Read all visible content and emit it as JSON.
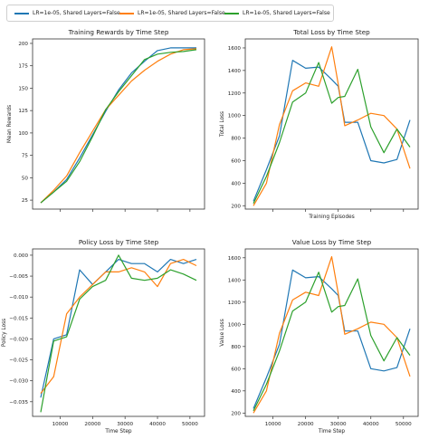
{
  "legend": [
    {
      "name": "LR=1e-05, Shared Layers=False",
      "color": "#1f77b4"
    },
    {
      "name": "LR=1e-05, Shared Layers=False",
      "color": "#ff7f0e"
    },
    {
      "name": "LR=1e-05, Shared Layers=False",
      "color": "#2ca02c"
    }
  ],
  "chart_data": [
    {
      "type": "line",
      "title": "Training Rewards by Time Step",
      "xlabel": "",
      "ylabel": "Mean Rewards",
      "xlim": [
        1500,
        54500
      ],
      "ylim": [
        15,
        205
      ],
      "yticks": [
        25,
        50,
        75,
        100,
        125,
        150,
        175,
        200
      ],
      "xticks": [
        10000,
        20000,
        30000,
        40000,
        50000
      ],
      "show_xticklabels": false,
      "x": [
        4000,
        8000,
        12000,
        16000,
        20000,
        24000,
        28000,
        32000,
        36000,
        40000,
        44000,
        48000,
        52000
      ],
      "series": [
        {
          "name": "LR=1e-05, Shared Layers=False",
          "color": "#1f77b4",
          "values": [
            22,
            34,
            48,
            72,
            98,
            124,
            148,
            167,
            180,
            192,
            195,
            195,
            195
          ]
        },
        {
          "name": "LR=1e-05, Shared Layers=False",
          "color": "#ff7f0e",
          "values": [
            22,
            36,
            52,
            78,
            102,
            126,
            142,
            158,
            170,
            180,
            188,
            193,
            194
          ]
        },
        {
          "name": "LR=1e-05, Shared Layers=False",
          "color": "#2ca02c",
          "values": [
            22,
            34,
            46,
            68,
            96,
            126,
            146,
            164,
            182,
            188,
            190,
            191,
            193
          ]
        }
      ]
    },
    {
      "type": "line",
      "title": "Total Loss by Time Step",
      "xlabel": "Training Episodes",
      "ylabel": "Total Loss",
      "xlim": [
        1500,
        54500
      ],
      "ylim": [
        170,
        1680
      ],
      "yticks": [
        200,
        400,
        600,
        800,
        1000,
        1200,
        1400,
        1600
      ],
      "xticks": [
        10000,
        20000,
        30000,
        40000,
        50000
      ],
      "show_xticklabels": false,
      "x": [
        4000,
        8000,
        12000,
        16000,
        20000,
        24000,
        28000,
        30000,
        32000,
        36000,
        40000,
        44000,
        48000,
        52000
      ],
      "series": [
        {
          "name": "LR=1e-05, Shared Layers=False",
          "color": "#1f77b4",
          "values": [
            240,
            520,
            820,
            1490,
            1420,
            1430,
            1320,
            1260,
            940,
            940,
            600,
            580,
            610,
            960
          ]
        },
        {
          "name": "LR=1e-05, Shared Layers=False",
          "color": "#ff7f0e",
          "values": [
            200,
            400,
            920,
            1220,
            1290,
            1260,
            1610,
            1280,
            910,
            960,
            1020,
            1000,
            880,
            530
          ]
        },
        {
          "name": "LR=1e-05, Shared Layers=False",
          "color": "#2ca02c",
          "values": [
            220,
            460,
            760,
            1120,
            1200,
            1470,
            1110,
            1160,
            1170,
            1410,
            900,
            670,
            880,
            720
          ]
        }
      ]
    },
    {
      "type": "line",
      "title": "Policy Loss by Time Step",
      "xlabel": "Time Step",
      "ylabel": "Policy Loss",
      "xlim": [
        1500,
        54500
      ],
      "ylim": [
        -0.0385,
        0.0015
      ],
      "yticks": [
        0.0,
        -0.005,
        -0.01,
        -0.015,
        -0.02,
        -0.025,
        -0.03,
        -0.035
      ],
      "yticklabels": [
        "0.000",
        "−0.005",
        "−0.010",
        "−0.015",
        "−0.020",
        "−0.025",
        "−0.030",
        "−0.035"
      ],
      "xticks": [
        10000,
        20000,
        30000,
        40000,
        50000
      ],
      "show_xticklabels": true,
      "x": [
        4000,
        8000,
        12000,
        16000,
        20000,
        24000,
        28000,
        32000,
        36000,
        40000,
        44000,
        48000,
        52000
      ],
      "series": [
        {
          "name": "LR=1e-05, Shared Layers=False",
          "color": "#1f77b4",
          "values": [
            -0.034,
            -0.02,
            -0.019,
            -0.0035,
            -0.007,
            -0.004,
            -0.001,
            -0.002,
            -0.002,
            -0.004,
            -0.001,
            -0.002,
            -0.001
          ]
        },
        {
          "name": "LR=1e-05, Shared Layers=False",
          "color": "#ff7f0e",
          "values": [
            -0.033,
            -0.029,
            -0.014,
            -0.01,
            -0.007,
            -0.004,
            -0.004,
            -0.003,
            -0.004,
            -0.0075,
            -0.002,
            -0.001,
            -0.0025
          ]
        },
        {
          "name": "LR=1e-05, Shared Layers=False",
          "color": "#2ca02c",
          "values": [
            -0.0375,
            -0.0205,
            -0.0195,
            -0.0105,
            -0.0075,
            -0.006,
            0.0,
            -0.0055,
            -0.006,
            -0.0055,
            -0.0035,
            -0.0045,
            -0.006
          ]
        }
      ]
    },
    {
      "type": "line",
      "title": "Value Loss by Time Step",
      "xlabel": "Time Step",
      "ylabel": "Value Loss",
      "xlim": [
        1500,
        54500
      ],
      "ylim": [
        170,
        1680
      ],
      "yticks": [
        200,
        400,
        600,
        800,
        1000,
        1200,
        1400,
        1600
      ],
      "xticks": [
        10000,
        20000,
        30000,
        40000,
        50000
      ],
      "show_xticklabels": true,
      "x": [
        4000,
        8000,
        12000,
        16000,
        20000,
        24000,
        28000,
        30000,
        32000,
        36000,
        40000,
        44000,
        48000,
        52000
      ],
      "series": [
        {
          "name": "LR=1e-05, Shared Layers=False",
          "color": "#1f77b4",
          "values": [
            240,
            520,
            820,
            1490,
            1420,
            1430,
            1320,
            1260,
            940,
            940,
            600,
            580,
            610,
            960
          ]
        },
        {
          "name": "LR=1e-05, Shared Layers=False",
          "color": "#ff7f0e",
          "values": [
            200,
            400,
            920,
            1220,
            1290,
            1260,
            1610,
            1280,
            910,
            960,
            1020,
            1000,
            880,
            530
          ]
        },
        {
          "name": "LR=1e-05, Shared Layers=False",
          "color": "#2ca02c",
          "values": [
            220,
            460,
            760,
            1120,
            1200,
            1470,
            1110,
            1160,
            1170,
            1410,
            900,
            670,
            880,
            720
          ]
        }
      ]
    }
  ]
}
